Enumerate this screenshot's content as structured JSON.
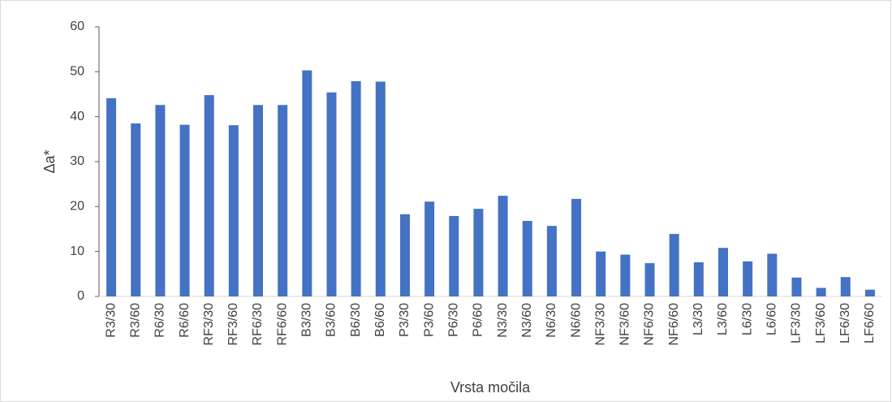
{
  "chart_data": {
    "type": "bar",
    "x_label": "Vrsta močila",
    "y_label": "Δa*",
    "categories": [
      "R3/30",
      "R3/60",
      "R6/30",
      "R6/60",
      "RF3/30",
      "RF3/60",
      "RF6/30",
      "RF6/60",
      "B3/30",
      "B3/60",
      "B6/30",
      "B6/60",
      "P3/30",
      "P3/60",
      "P6/30",
      "P6/60",
      "N3/30",
      "N3/60",
      "N6/30",
      "N6/60",
      "NF3/30",
      "NF3/60",
      "NF6/30",
      "NF6/60",
      "L3/30",
      "L3/60",
      "L6/30",
      "L6/60",
      "LF3/30",
      "LF3/60",
      "LF6/30",
      "LF6/60"
    ],
    "values": [
      44.1,
      38.5,
      42.6,
      38.2,
      44.8,
      38.1,
      42.6,
      42.6,
      50.3,
      45.4,
      47.9,
      47.8,
      18.3,
      21.1,
      17.9,
      19.5,
      22.4,
      16.8,
      15.7,
      21.7,
      10.0,
      9.3,
      7.4,
      13.9,
      7.6,
      10.8,
      7.8,
      9.5,
      4.2,
      1.9,
      4.3,
      1.5
    ],
    "color": "#4472c4",
    "ylim": [
      0,
      60
    ],
    "yticks": [
      0,
      10,
      20,
      30,
      40,
      50,
      60
    ],
    "grid": false
  }
}
